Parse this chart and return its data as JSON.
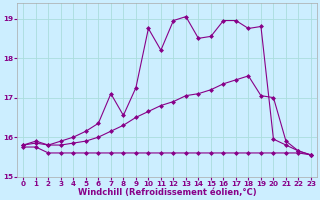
{
  "xlabel": "Windchill (Refroidissement éolien,°C)",
  "bg_color": "#cceeff",
  "line_color": "#880088",
  "grid_color": "#aadddd",
  "xlim": [
    -0.5,
    23.5
  ],
  "ylim": [
    15.0,
    19.4
  ],
  "yticks": [
    15,
    16,
    17,
    18,
    19
  ],
  "xticks": [
    0,
    1,
    2,
    3,
    4,
    5,
    6,
    7,
    8,
    9,
    10,
    11,
    12,
    13,
    14,
    15,
    16,
    17,
    18,
    19,
    20,
    21,
    22,
    23
  ],
  "series1_x": [
    0,
    1,
    2,
    3,
    4,
    5,
    6,
    7,
    8,
    9,
    10,
    11,
    12,
    13,
    14,
    15,
    16,
    17,
    18,
    19,
    20,
    21,
    22,
    23
  ],
  "series1_y": [
    15.75,
    15.75,
    15.6,
    15.6,
    15.6,
    15.6,
    15.6,
    15.6,
    15.6,
    15.6,
    15.6,
    15.6,
    15.6,
    15.6,
    15.6,
    15.6,
    15.6,
    15.6,
    15.6,
    15.6,
    15.6,
    15.6,
    15.6,
    15.55
  ],
  "series2_x": [
    0,
    1,
    2,
    3,
    4,
    5,
    6,
    7,
    8,
    9,
    10,
    11,
    12,
    13,
    14,
    15,
    16,
    17,
    18,
    19,
    20,
    21,
    22,
    23
  ],
  "series2_y": [
    15.8,
    15.85,
    15.8,
    15.8,
    15.85,
    15.9,
    16.0,
    16.15,
    16.3,
    16.5,
    16.65,
    16.8,
    16.9,
    17.05,
    17.1,
    17.2,
    17.35,
    17.45,
    17.55,
    17.05,
    17.0,
    15.9,
    15.65,
    15.55
  ],
  "series3_x": [
    0,
    1,
    2,
    3,
    4,
    5,
    6,
    7,
    8,
    9,
    10,
    11,
    12,
    13,
    14,
    15,
    16,
    17,
    18,
    19,
    20,
    21,
    22,
    23
  ],
  "series3_y": [
    15.8,
    15.9,
    15.8,
    15.9,
    16.0,
    16.15,
    16.35,
    17.1,
    16.55,
    17.25,
    18.75,
    18.2,
    18.95,
    19.05,
    18.5,
    18.55,
    18.95,
    18.95,
    18.75,
    18.8,
    15.95,
    15.8,
    15.65,
    15.55
  ],
  "marker": "D",
  "markersize": 2.0,
  "linewidth": 0.8,
  "tick_fontsize": 5.2,
  "label_fontsize": 6.0
}
